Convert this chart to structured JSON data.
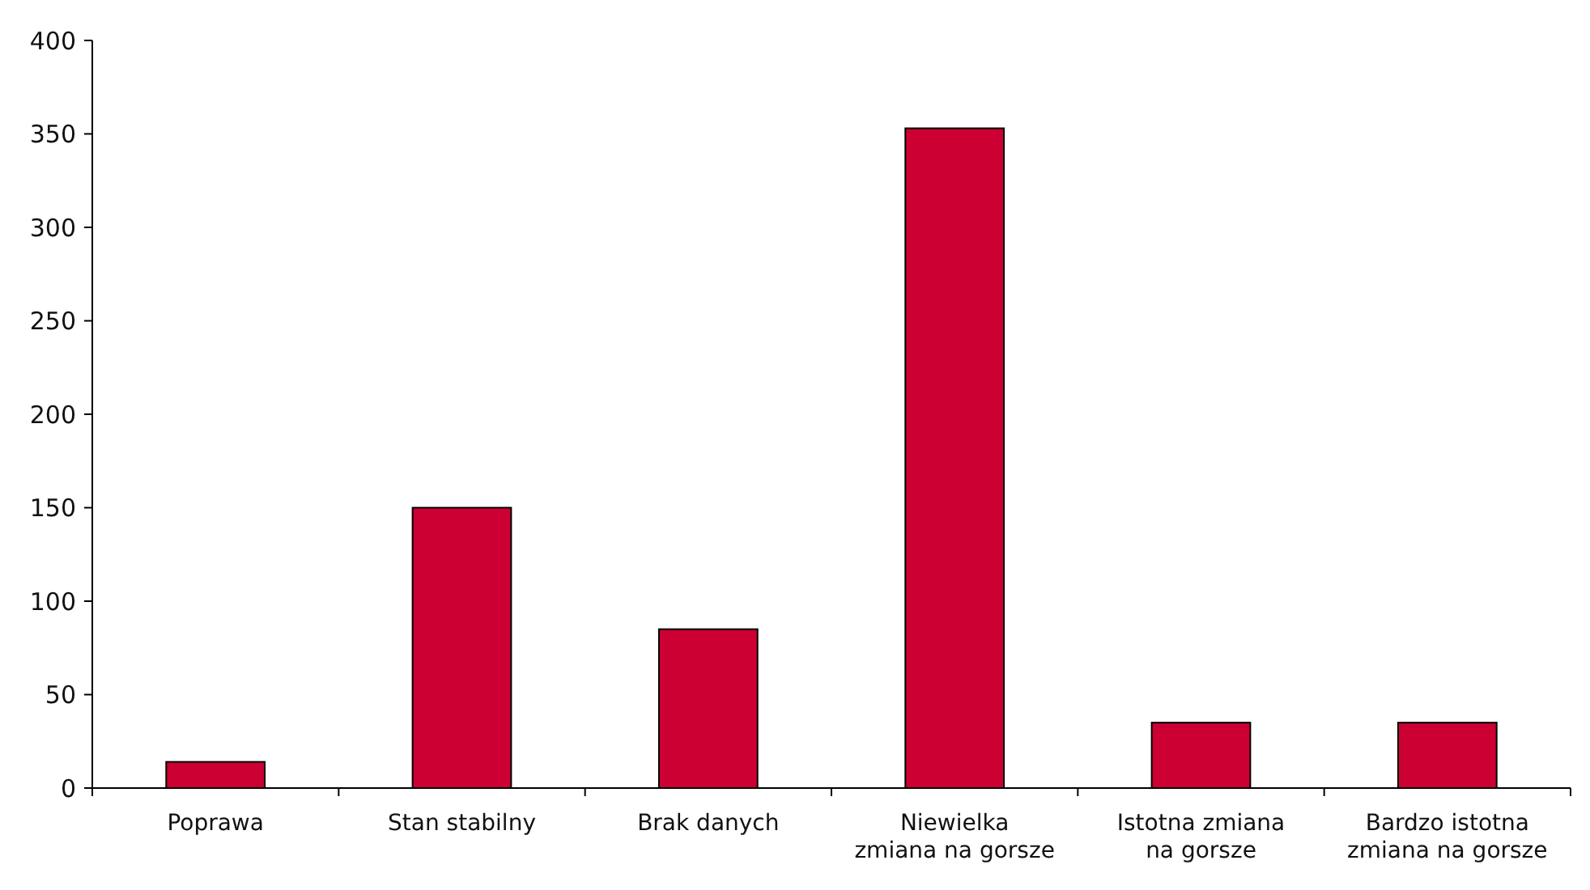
{
  "chart_data": {
    "type": "bar",
    "categories": [
      "Poprawa",
      "Stan stabilny",
      "Brak danych",
      "Niewielka\nzmiana na gorsze",
      "Istotna zmiana\nna gorsze",
      "Bardzo istotna\nzmiana na gorsze"
    ],
    "values": [
      14,
      150,
      85,
      353,
      35,
      35
    ],
    "color": "#cc0033",
    "ylim": [
      0,
      400
    ],
    "yticks": [
      0,
      50,
      100,
      150,
      200,
      250,
      300,
      350,
      400
    ],
    "grid": false
  }
}
